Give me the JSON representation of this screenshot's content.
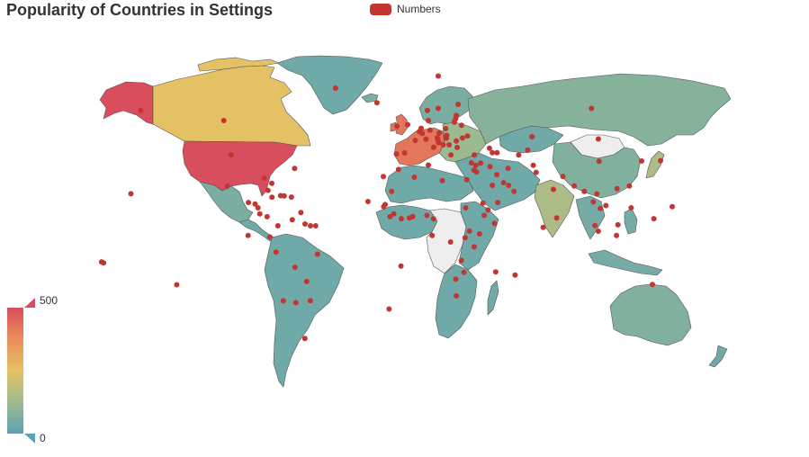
{
  "chart_data": {
    "type": "map",
    "title": "Popularity of Countries in Settings",
    "legend": {
      "series_name": "Numbers",
      "color": "#c23531",
      "placement": "top-center"
    },
    "visual_map": {
      "min": 0,
      "max": 500,
      "min_label": "0",
      "max_label": "500",
      "placement": "bottom-left",
      "orientation": "vertical",
      "colors": [
        "#5aa2b4",
        "#9fbb8f",
        "#e5c165",
        "#e98e5a",
        "#d94e5d"
      ]
    },
    "no_data_color": "#eeeeee",
    "point_color": "#c23531",
    "regions": [
      {
        "name": "United States",
        "value": 500
      },
      {
        "name": "Alaska",
        "value": 500
      },
      {
        "name": "Canada",
        "value": 250
      },
      {
        "name": "Greenland",
        "value": 40
      },
      {
        "name": "Mexico",
        "value": 60
      },
      {
        "name": "Central America",
        "value": 40
      },
      {
        "name": "South America",
        "value": 40
      },
      {
        "name": "Western Europe",
        "value": 420
      },
      {
        "name": "Northern Europe",
        "value": 60
      },
      {
        "name": "Eastern Europe",
        "value": 120
      },
      {
        "name": "Russia",
        "value": 80
      },
      {
        "name": "China",
        "value": 70
      },
      {
        "name": "Kazakhstan",
        "value": 40
      },
      {
        "name": "Middle East",
        "value": 40
      },
      {
        "name": "India",
        "value": 150
      },
      {
        "name": "Southeast Asia",
        "value": 50
      },
      {
        "name": "Japan",
        "value": 150
      },
      {
        "name": "Australia",
        "value": 70
      },
      {
        "name": "New Zealand",
        "value": 40
      },
      {
        "name": "North Africa",
        "value": 40
      },
      {
        "name": "West Africa",
        "value": 40
      },
      {
        "name": "East Africa",
        "value": 40
      },
      {
        "name": "Southern Africa",
        "value": 40
      },
      {
        "name": "Madagascar",
        "value": 40
      }
    ],
    "points": [
      {
        "name": "Alaska",
        "lon": -150,
        "lat": 61
      },
      {
        "name": "Canada",
        "lon": -104,
        "lat": 56
      },
      {
        "name": "Greenland",
        "lon": -42,
        "lat": 72
      },
      {
        "name": "Iceland",
        "lon": -19,
        "lat": 64.8
      },
      {
        "name": "United States",
        "lon": -100,
        "lat": 39
      },
      {
        "name": "Bermuda",
        "lon": -64.7,
        "lat": 32.3
      },
      {
        "name": "Bahamas",
        "lon": -77.4,
        "lat": 25
      },
      {
        "name": "Florida",
        "lon": -81.5,
        "lat": 27.5
      },
      {
        "name": "Mexico",
        "lon": -102,
        "lat": 23.6
      },
      {
        "name": "Cuba",
        "lon": -79.5,
        "lat": 21.5
      },
      {
        "name": "Haiti",
        "lon": -72.5,
        "lat": 18.9
      },
      {
        "name": "Puerto Rico",
        "lon": -66.5,
        "lat": 18.2
      },
      {
        "name": "Guatemala",
        "lon": -90.3,
        "lat": 15.5
      },
      {
        "name": "Honduras",
        "lon": -86.6,
        "lat": 14.8
      },
      {
        "name": "Nicaragua",
        "lon": -85,
        "lat": 12.9
      },
      {
        "name": "Costa Rica",
        "lon": -84,
        "lat": 9.9
      },
      {
        "name": "Panama",
        "lon": -80,
        "lat": 8.5
      },
      {
        "name": "Jamaica",
        "lon": -77.3,
        "lat": 18.1
      },
      {
        "name": "Dominican Republic",
        "lon": -70.5,
        "lat": 18.8
      },
      {
        "name": "Trinidad",
        "lon": -61.2,
        "lat": 10.6
      },
      {
        "name": "Hawaii",
        "lon": -155.5,
        "lat": 19.8
      },
      {
        "name": "Colombia",
        "lon": -74,
        "lat": 4
      },
      {
        "name": "Venezuela",
        "lon": -66,
        "lat": 7
      },
      {
        "name": "Guyana",
        "lon": -58.9,
        "lat": 4.9
      },
      {
        "name": "Suriname",
        "lon": -55.9,
        "lat": 4
      },
      {
        "name": "French Guiana",
        "lon": -53,
        "lat": 4
      },
      {
        "name": "Ecuador",
        "lon": -78.5,
        "lat": -1.5
      },
      {
        "name": "Galapagos",
        "lon": -90.5,
        "lat": -0.8
      },
      {
        "name": "Peru",
        "lon": -75,
        "lat": -9
      },
      {
        "name": "Brazil",
        "lon": -52,
        "lat": -10
      },
      {
        "name": "Bolivia",
        "lon": -64.5,
        "lat": -16.5
      },
      {
        "name": "Paraguay",
        "lon": -58,
        "lat": -23.5
      },
      {
        "name": "Chile",
        "lon": -71,
        "lat": -33
      },
      {
        "name": "Argentina",
        "lon": -64,
        "lat": -34
      },
      {
        "name": "Uruguay",
        "lon": -56,
        "lat": -33
      },
      {
        "name": "Falklands",
        "lon": -59,
        "lat": -51.7
      },
      {
        "name": "Pitcairn",
        "lon": -130.1,
        "lat": -25.1
      },
      {
        "name": "Samoa",
        "lon": -171.8,
        "lat": -13.8
      },
      {
        "name": "American Samoa",
        "lon": -170.7,
        "lat": -14.3
      },
      {
        "name": "Norway",
        "lon": 9,
        "lat": 61
      },
      {
        "name": "Sweden",
        "lon": 15,
        "lat": 62
      },
      {
        "name": "Finland",
        "lon": 26,
        "lat": 64
      },
      {
        "name": "Svalbard",
        "lon": 15,
        "lat": 78
      },
      {
        "name": "Ireland",
        "lon": -8,
        "lat": 53.2
      },
      {
        "name": "United Kingdom",
        "lon": -2,
        "lat": 54
      },
      {
        "name": "Denmark",
        "lon": 9.5,
        "lat": 56
      },
      {
        "name": "Netherlands",
        "lon": 5.5,
        "lat": 52.2
      },
      {
        "name": "Belgium",
        "lon": 4.5,
        "lat": 50.6
      },
      {
        "name": "Luxembourg",
        "lon": 6.1,
        "lat": 49.7
      },
      {
        "name": "France",
        "lon": 2.2,
        "lat": 46.2
      },
      {
        "name": "Switzerland",
        "lon": 8.2,
        "lat": 46.8
      },
      {
        "name": "Germany",
        "lon": 10.4,
        "lat": 51.2
      },
      {
        "name": "Austria",
        "lon": 14.5,
        "lat": 47.5
      },
      {
        "name": "Italy",
        "lon": 12.5,
        "lat": 42.8
      },
      {
        "name": "Spain",
        "lon": -3.7,
        "lat": 40
      },
      {
        "name": "Portugal",
        "lon": -8.2,
        "lat": 39.5
      },
      {
        "name": "Poland",
        "lon": 19.1,
        "lat": 52
      },
      {
        "name": "Czechia",
        "lon": 15.5,
        "lat": 49.8
      },
      {
        "name": "Slovakia",
        "lon": 19.7,
        "lat": 48.7
      },
      {
        "name": "Hungary",
        "lon": 19.5,
        "lat": 47.2
      },
      {
        "name": "Slovenia",
        "lon": 14.9,
        "lat": 46.1
      },
      {
        "name": "Croatia",
        "lon": 15.2,
        "lat": 45.1
      },
      {
        "name": "Bosnia",
        "lon": 17.7,
        "lat": 44
      },
      {
        "name": "Serbia",
        "lon": 21,
        "lat": 44
      },
      {
        "name": "Romania",
        "lon": 25,
        "lat": 45.9
      },
      {
        "name": "Bulgaria",
        "lon": 25.5,
        "lat": 42.7
      },
      {
        "name": "Greece",
        "lon": 22,
        "lat": 39
      },
      {
        "name": "Estonia",
        "lon": 25,
        "lat": 58.6
      },
      {
        "name": "Latvia",
        "lon": 24.6,
        "lat": 56.9
      },
      {
        "name": "Lithuania",
        "lon": 23.9,
        "lat": 55.2
      },
      {
        "name": "Belarus",
        "lon": 27.9,
        "lat": 53.7
      },
      {
        "name": "Ukraine",
        "lon": 31.2,
        "lat": 48.4
      },
      {
        "name": "Moldova",
        "lon": 28.4,
        "lat": 47.4
      },
      {
        "name": "Russia",
        "lon": 100,
        "lat": 62
      },
      {
        "name": "Turkey",
        "lon": 35,
        "lat": 39
      },
      {
        "name": "Cyprus",
        "lon": 33.4,
        "lat": 35.1
      },
      {
        "name": "Lebanon",
        "lon": 35.9,
        "lat": 33.9
      },
      {
        "name": "Israel",
        "lon": 34.9,
        "lat": 31.5
      },
      {
        "name": "Syria",
        "lon": 38.5,
        "lat": 35
      },
      {
        "name": "Iraq",
        "lon": 43.7,
        "lat": 33.2
      },
      {
        "name": "Iran",
        "lon": 53.7,
        "lat": 32.4
      },
      {
        "name": "Saudi Arabia",
        "lon": 45,
        "lat": 24
      },
      {
        "name": "Yemen",
        "lon": 48,
        "lat": 15.5
      },
      {
        "name": "Oman",
        "lon": 57,
        "lat": 21
      },
      {
        "name": "UAE",
        "lon": 54,
        "lat": 24
      },
      {
        "name": "Kuwait",
        "lon": 47.5,
        "lat": 29.3
      },
      {
        "name": "Qatar",
        "lon": 51.2,
        "lat": 25.3
      },
      {
        "name": "Jordan",
        "lon": 36.2,
        "lat": 30.6
      },
      {
        "name": "Georgia",
        "lon": 43.4,
        "lat": 42.3
      },
      {
        "name": "Armenia",
        "lon": 45,
        "lat": 40.1
      },
      {
        "name": "Azerbaijan",
        "lon": 47.6,
        "lat": 40.1
      },
      {
        "name": "Kazakhstan",
        "lon": 67,
        "lat": 48
      },
      {
        "name": "Uzbekistan",
        "lon": 64.6,
        "lat": 41.4
      },
      {
        "name": "Turkmenistan",
        "lon": 59.6,
        "lat": 39
      },
      {
        "name": "Afghanistan",
        "lon": 67.7,
        "lat": 33.9
      },
      {
        "name": "Pakistan",
        "lon": 69.3,
        "lat": 30.4
      },
      {
        "name": "India",
        "lon": 78.9,
        "lat": 22
      },
      {
        "name": "Nepal",
        "lon": 84.1,
        "lat": 28.4
      },
      {
        "name": "Bangladesh",
        "lon": 90.4,
        "lat": 23.7
      },
      {
        "name": "Sri Lanka",
        "lon": 80.7,
        "lat": 7.9
      },
      {
        "name": "Maldives",
        "lon": 73.2,
        "lat": 3.2
      },
      {
        "name": "Myanmar",
        "lon": 96,
        "lat": 21
      },
      {
        "name": "Thailand",
        "lon": 101,
        "lat": 15.8
      },
      {
        "name": "Laos",
        "lon": 103,
        "lat": 19.8
      },
      {
        "name": "Cambodia",
        "lon": 104.9,
        "lat": 12.6
      },
      {
        "name": "Vietnam",
        "lon": 108,
        "lat": 14
      },
      {
        "name": "Malaysia",
        "lon": 101.9,
        "lat": 4.2
      },
      {
        "name": "Singapore",
        "lon": 103.8,
        "lat": 1.35
      },
      {
        "name": "Indonesia",
        "lon": 113.9,
        "lat": -0.8
      },
      {
        "name": "Philippines",
        "lon": 122,
        "lat": 12.9
      },
      {
        "name": "Brunei",
        "lon": 114.7,
        "lat": 4.5
      },
      {
        "name": "China",
        "lon": 104.2,
        "lat": 35.9
      },
      {
        "name": "Mongolia",
        "lon": 103.8,
        "lat": 46.9
      },
      {
        "name": "Taiwan",
        "lon": 121,
        "lat": 23.7
      },
      {
        "name": "Hong Kong",
        "lon": 114.2,
        "lat": 22.3
      },
      {
        "name": "South Korea",
        "lon": 127.8,
        "lat": 36
      },
      {
        "name": "Japan",
        "lon": 138.3,
        "lat": 36.2
      },
      {
        "name": "Guam",
        "lon": 144.8,
        "lat": 13.4
      },
      {
        "name": "Palau",
        "lon": 134.6,
        "lat": 7.5
      },
      {
        "name": "Australia",
        "lon": 133.8,
        "lat": -25
      },
      {
        "name": "Morocco",
        "lon": -7.1,
        "lat": 31.8
      },
      {
        "name": "Canary Islands",
        "lon": -15.5,
        "lat": 28.3
      },
      {
        "name": "Algeria",
        "lon": 1.7,
        "lat": 28
      },
      {
        "name": "Tunisia",
        "lon": 9.5,
        "lat": 34
      },
      {
        "name": "Libya",
        "lon": 17.2,
        "lat": 26.3
      },
      {
        "name": "Egypt",
        "lon": 30.8,
        "lat": 26.8
      },
      {
        "name": "Mauritania",
        "lon": -10.9,
        "lat": 21
      },
      {
        "name": "Senegal",
        "lon": -14.5,
        "lat": 14.5
      },
      {
        "name": "Gambia",
        "lon": -15.3,
        "lat": 13.4
      },
      {
        "name": "Guinea",
        "lon": -9.7,
        "lat": 9.9
      },
      {
        "name": "Sierra Leone",
        "lon": -11.8,
        "lat": 8.5
      },
      {
        "name": "Cote d'Ivoire",
        "lon": -5.5,
        "lat": 7.5
      },
      {
        "name": "Ghana",
        "lon": -1,
        "lat": 7.9
      },
      {
        "name": "Togo",
        "lon": 0.8,
        "lat": 8.6
      },
      {
        "name": "Nigeria",
        "lon": 8.7,
        "lat": 9.1
      },
      {
        "name": "Cameroon",
        "lon": 12.4,
        "lat": 7.4
      },
      {
        "name": "Gabon",
        "lon": 11.6,
        "lat": -0.8
      },
      {
        "name": "DR Congo",
        "lon": 21.8,
        "lat": -4
      },
      {
        "name": "Sudan",
        "lon": 30.2,
        "lat": 12.9
      },
      {
        "name": "Ethiopia",
        "lon": 40.5,
        "lat": 9.1
      },
      {
        "name": "Eritrea",
        "lon": 39.8,
        "lat": 15.2
      },
      {
        "name": "Djibouti",
        "lon": 42.6,
        "lat": 11.8
      },
      {
        "name": "Somalia",
        "lon": 46.2,
        "lat": 5.2
      },
      {
        "name": "Kenya",
        "lon": 37.9,
        "lat": -0.02
      },
      {
        "name": "Uganda",
        "lon": 32.3,
        "lat": 1.4
      },
      {
        "name": "Rwanda",
        "lon": 29.9,
        "lat": -1.9
      },
      {
        "name": "Tanzania",
        "lon": 34.9,
        "lat": -6.4
      },
      {
        "name": "Zambia",
        "lon": 27.8,
        "lat": -13.1
      },
      {
        "name": "Zimbabwe",
        "lon": 29.2,
        "lat": -19
      },
      {
        "name": "Botswana",
        "lon": 24.7,
        "lat": -22.3
      },
      {
        "name": "South Africa",
        "lon": 25,
        "lat": -30.6
      },
      {
        "name": "Madagascar",
        "lon": 46.9,
        "lat": -18.8
      },
      {
        "name": "Mauritius",
        "lon": 57.6,
        "lat": -20.3
      },
      {
        "name": "Saint Helena",
        "lon": -5.7,
        "lat": -15.9
      },
      {
        "name": "Tristan da Cunha",
        "lon": -12.3,
        "lat": -37.1
      },
      {
        "name": "Cape Verde",
        "lon": -24,
        "lat": 16
      }
    ]
  }
}
